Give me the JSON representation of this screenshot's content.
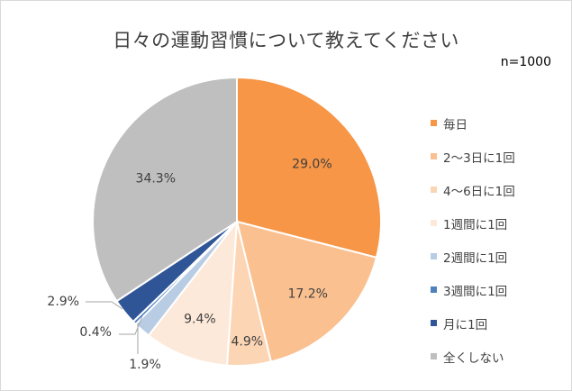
{
  "chart_data": {
    "type": "pie",
    "title": "日々の運動習慣について教えてください",
    "note": "n=1000",
    "categories": [
      "毎日",
      "2～3日に1回",
      "4～6日に1回",
      "1週間に1回",
      "2週間に1回",
      "3週間に1回",
      "月に1回",
      "全くしない"
    ],
    "values": [
      29.0,
      17.2,
      4.9,
      9.4,
      1.9,
      0.4,
      2.9,
      34.3
    ],
    "labels": [
      "29.0%",
      "17.2%",
      "4.9%",
      "9.4%",
      "1.9%",
      "0.4%",
      "2.9%",
      "34.3%"
    ],
    "colors": [
      "#f79646",
      "#fac090",
      "#fcd5b4",
      "#fde9d9",
      "#b8cce4",
      "#4f81bd",
      "#2f5597",
      "#bfbfbf"
    ],
    "legend_position": "right"
  }
}
